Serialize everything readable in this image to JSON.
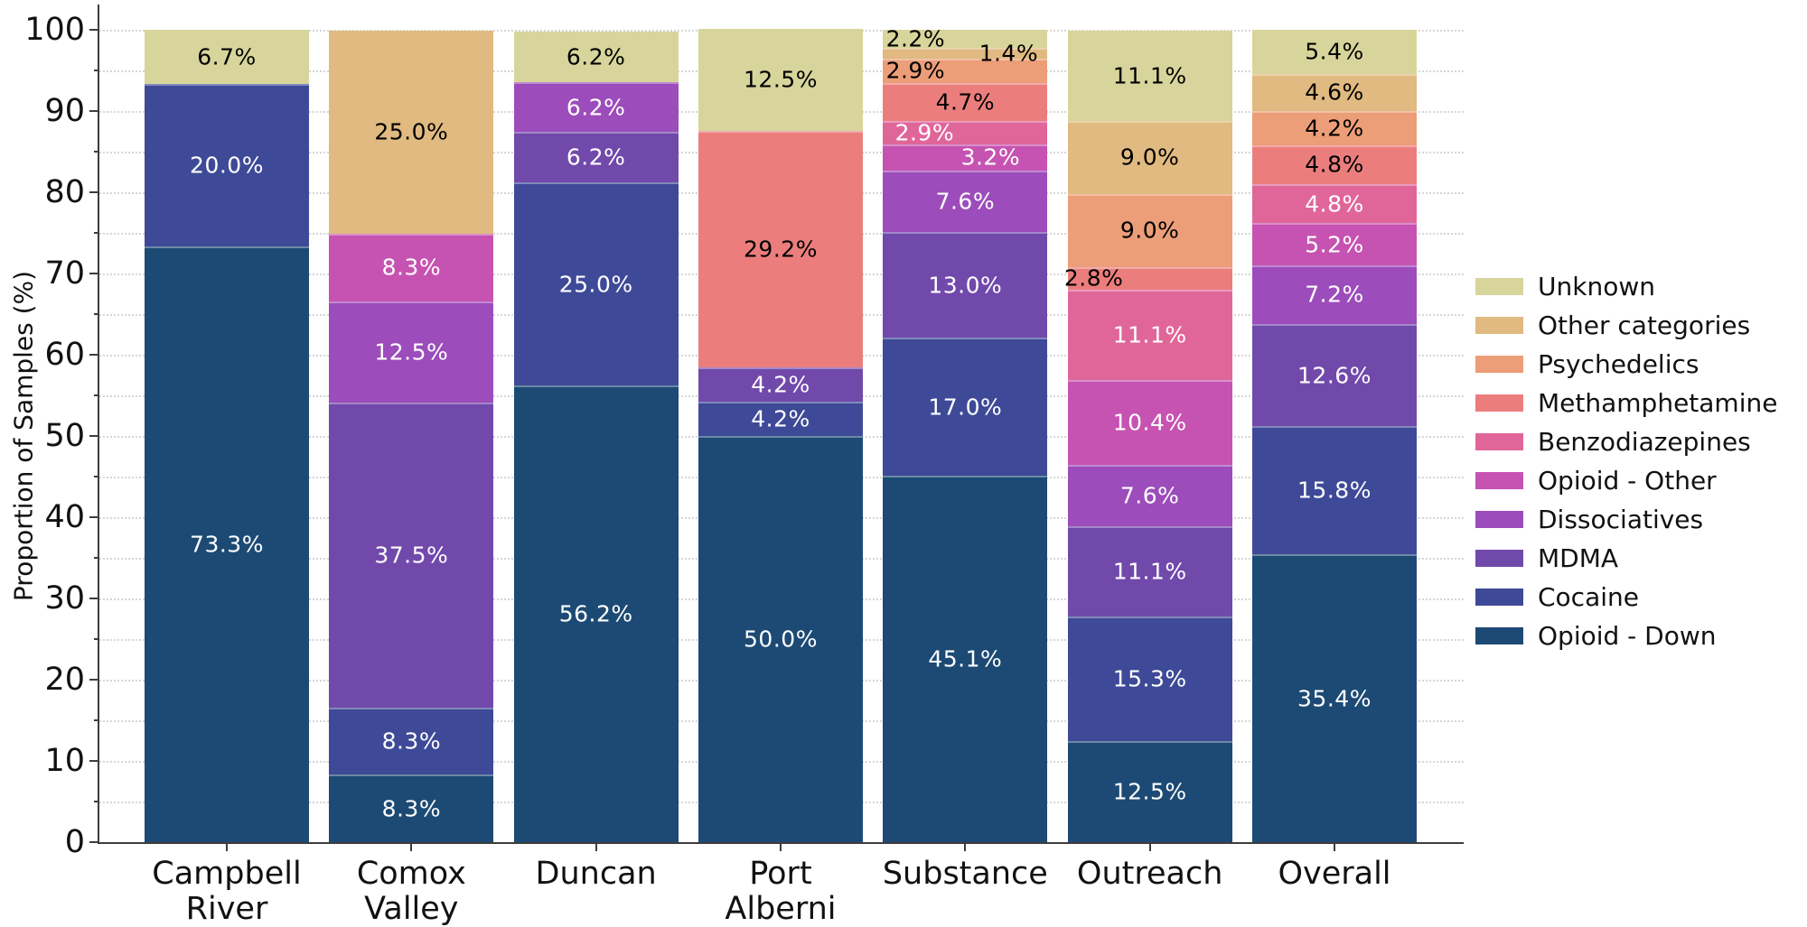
{
  "figure": {
    "background": "#ffffff",
    "axis_color": "#3d3d3d",
    "grid_color": "#d6d6d6"
  },
  "axes": {
    "ylabel": "Proportion of Samples (%)",
    "ymin": 0,
    "ymax": 100,
    "ytick_major_step": 10,
    "ytick_minor_step": 5,
    "ytick_labels": [
      "0",
      "10",
      "20",
      "30",
      "40",
      "50",
      "60",
      "70",
      "80",
      "90",
      "100"
    ]
  },
  "legend": {
    "position": "center-right",
    "items": [
      {
        "name": "Unknown",
        "color": "#d7d59b"
      },
      {
        "name": "Other categories",
        "color": "#e0ba80"
      },
      {
        "name": "Psychedelics",
        "color": "#ec9e78"
      },
      {
        "name": "Methamphetamine",
        "color": "#eb7e7d"
      },
      {
        "name": "Benzodiazepines",
        "color": "#e0669a"
      },
      {
        "name": "Opioid - Other",
        "color": "#c653b1"
      },
      {
        "name": "Dissociatives",
        "color": "#9c4cbb"
      },
      {
        "name": "MDMA",
        "color": "#7149ab"
      },
      {
        "name": "Cocaine",
        "color": "#3e4a97"
      },
      {
        "name": "Opioid - Down",
        "color": "#1c4a74"
      }
    ]
  },
  "chart_data": {
    "type": "bar",
    "stacked": true,
    "orientation": "vertical",
    "title": "",
    "xlabel": "",
    "ylabel": "Proportion of Samples (%)",
    "ylim": [
      0,
      100
    ],
    "grid": "horizontal dotted every 5",
    "legend_position": "center-right",
    "categories": [
      "Campbell River",
      "Comox Valley",
      "Duncan",
      "Port Alberni",
      "Substance",
      "Outreach",
      "Overall"
    ],
    "category_label_lines": [
      [
        "Campbell",
        "River"
      ],
      [
        "Comox",
        "Valley"
      ],
      [
        "Duncan"
      ],
      [
        "Port",
        "Alberni"
      ],
      [
        "Substance"
      ],
      [
        "Outreach"
      ],
      [
        "Overall"
      ]
    ],
    "series_order_bottom_to_top": [
      "Opioid - Down",
      "Cocaine",
      "MDMA",
      "Dissociatives",
      "Opioid - Other",
      "Benzodiazepines",
      "Methamphetamine",
      "Psychedelics",
      "Other categories",
      "Unknown"
    ],
    "label_text_colors": {
      "Unknown": "#000000",
      "Other categories": "#000000",
      "Psychedelics": "#000000",
      "Methamphetamine": "#000000",
      "Benzodiazepines": "#ffffff",
      "Opioid - Other": "#ffffff",
      "Dissociatives": "#ffffff",
      "MDMA": "#ffffff",
      "Cocaine": "#ffffff",
      "Opioid - Down": "#ffffff"
    },
    "bars": [
      {
        "category": "Campbell River",
        "segments": [
          {
            "series": "Opioid - Down",
            "value": 73.3,
            "label": "73.3%"
          },
          {
            "series": "Cocaine",
            "value": 20.0,
            "label": "20.0%"
          },
          {
            "series": "Unknown",
            "value": 6.7,
            "label": "6.7%"
          }
        ]
      },
      {
        "category": "Comox Valley",
        "segments": [
          {
            "series": "Opioid - Down",
            "value": 8.3,
            "label": "8.3%"
          },
          {
            "series": "Cocaine",
            "value": 8.3,
            "label": "8.3%"
          },
          {
            "series": "MDMA",
            "value": 37.5,
            "label": "37.5%"
          },
          {
            "series": "Dissociatives",
            "value": 12.5,
            "label": "12.5%"
          },
          {
            "series": "Opioid - Other",
            "value": 8.3,
            "label": "8.3%"
          },
          {
            "series": "Other categories",
            "value": 25.0,
            "label": "25.0%"
          }
        ]
      },
      {
        "category": "Duncan",
        "segments": [
          {
            "series": "Opioid - Down",
            "value": 56.2,
            "label": "56.2%"
          },
          {
            "series": "Cocaine",
            "value": 25.0,
            "label": "25.0%"
          },
          {
            "series": "MDMA",
            "value": 6.2,
            "label": "6.2%"
          },
          {
            "series": "Dissociatives",
            "value": 6.2,
            "label": "6.2%"
          },
          {
            "series": "Unknown",
            "value": 6.2,
            "label": "6.2%"
          }
        ]
      },
      {
        "category": "Port Alberni",
        "segments": [
          {
            "series": "Opioid - Down",
            "value": 50.0,
            "label": "50.0%"
          },
          {
            "series": "Cocaine",
            "value": 4.2,
            "label": "4.2%"
          },
          {
            "series": "MDMA",
            "value": 4.2,
            "label": "4.2%"
          },
          {
            "series": "Methamphetamine",
            "value": 29.2,
            "label": "29.2%"
          },
          {
            "series": "Unknown",
            "value": 12.5,
            "label": "12.5%"
          }
        ]
      },
      {
        "category": "Substance",
        "segments": [
          {
            "series": "Opioid - Down",
            "value": 45.1,
            "label": "45.1%"
          },
          {
            "series": "Cocaine",
            "value": 17.0,
            "label": "17.0%"
          },
          {
            "series": "MDMA",
            "value": 13.0,
            "label": "13.0%"
          },
          {
            "series": "Dissociatives",
            "value": 7.6,
            "label": "7.6%"
          },
          {
            "series": "Opioid - Other",
            "value": 3.2,
            "label": "3.2%",
            "label_dx": 28
          },
          {
            "series": "Benzodiazepines",
            "value": 2.9,
            "label": "2.9%",
            "label_dx": -45
          },
          {
            "series": "Methamphetamine",
            "value": 4.7,
            "label": "4.7%"
          },
          {
            "series": "Psychedelics",
            "value": 2.9,
            "label": "2.9%",
            "label_dx": -55
          },
          {
            "series": "Other categories",
            "value": 1.4,
            "label": "1.4%",
            "label_dx": 48
          },
          {
            "series": "Unknown",
            "value": 2.2,
            "label": "2.2%",
            "label_dx": -55
          }
        ]
      },
      {
        "category": "Outreach",
        "segments": [
          {
            "series": "Opioid - Down",
            "value": 12.5,
            "label": "12.5%"
          },
          {
            "series": "Cocaine",
            "value": 15.3,
            "label": "15.3%"
          },
          {
            "series": "MDMA",
            "value": 11.1,
            "label": "11.1%"
          },
          {
            "series": "Dissociatives",
            "value": 7.6,
            "label": "7.6%"
          },
          {
            "series": "Opioid - Other",
            "value": 10.4,
            "label": "10.4%"
          },
          {
            "series": "Benzodiazepines",
            "value": 11.1,
            "label": "11.1%"
          },
          {
            "series": "Methamphetamine",
            "value": 2.8,
            "label": "2.8%",
            "label_dx": -62
          },
          {
            "series": "Psychedelics",
            "value": 9.0,
            "label": "9.0%"
          },
          {
            "series": "Other categories",
            "value": 9.0,
            "label": "9.0%"
          },
          {
            "series": "Unknown",
            "value": 11.1,
            "label": "11.1%"
          }
        ]
      },
      {
        "category": "Overall",
        "segments": [
          {
            "series": "Opioid - Down",
            "value": 35.4,
            "label": "35.4%"
          },
          {
            "series": "Cocaine",
            "value": 15.8,
            "label": "15.8%"
          },
          {
            "series": "MDMA",
            "value": 12.6,
            "label": "12.6%"
          },
          {
            "series": "Dissociatives",
            "value": 7.2,
            "label": "7.2%"
          },
          {
            "series": "Opioid - Other",
            "value": 5.2,
            "label": "5.2%"
          },
          {
            "series": "Benzodiazepines",
            "value": 4.8,
            "label": "4.8%"
          },
          {
            "series": "Methamphetamine",
            "value": 4.8,
            "label": "4.8%"
          },
          {
            "series": "Psychedelics",
            "value": 4.2,
            "label": "4.2%"
          },
          {
            "series": "Other categories",
            "value": 4.6,
            "label": "4.6%"
          },
          {
            "series": "Unknown",
            "value": 5.4,
            "label": "5.4%"
          }
        ]
      }
    ]
  }
}
